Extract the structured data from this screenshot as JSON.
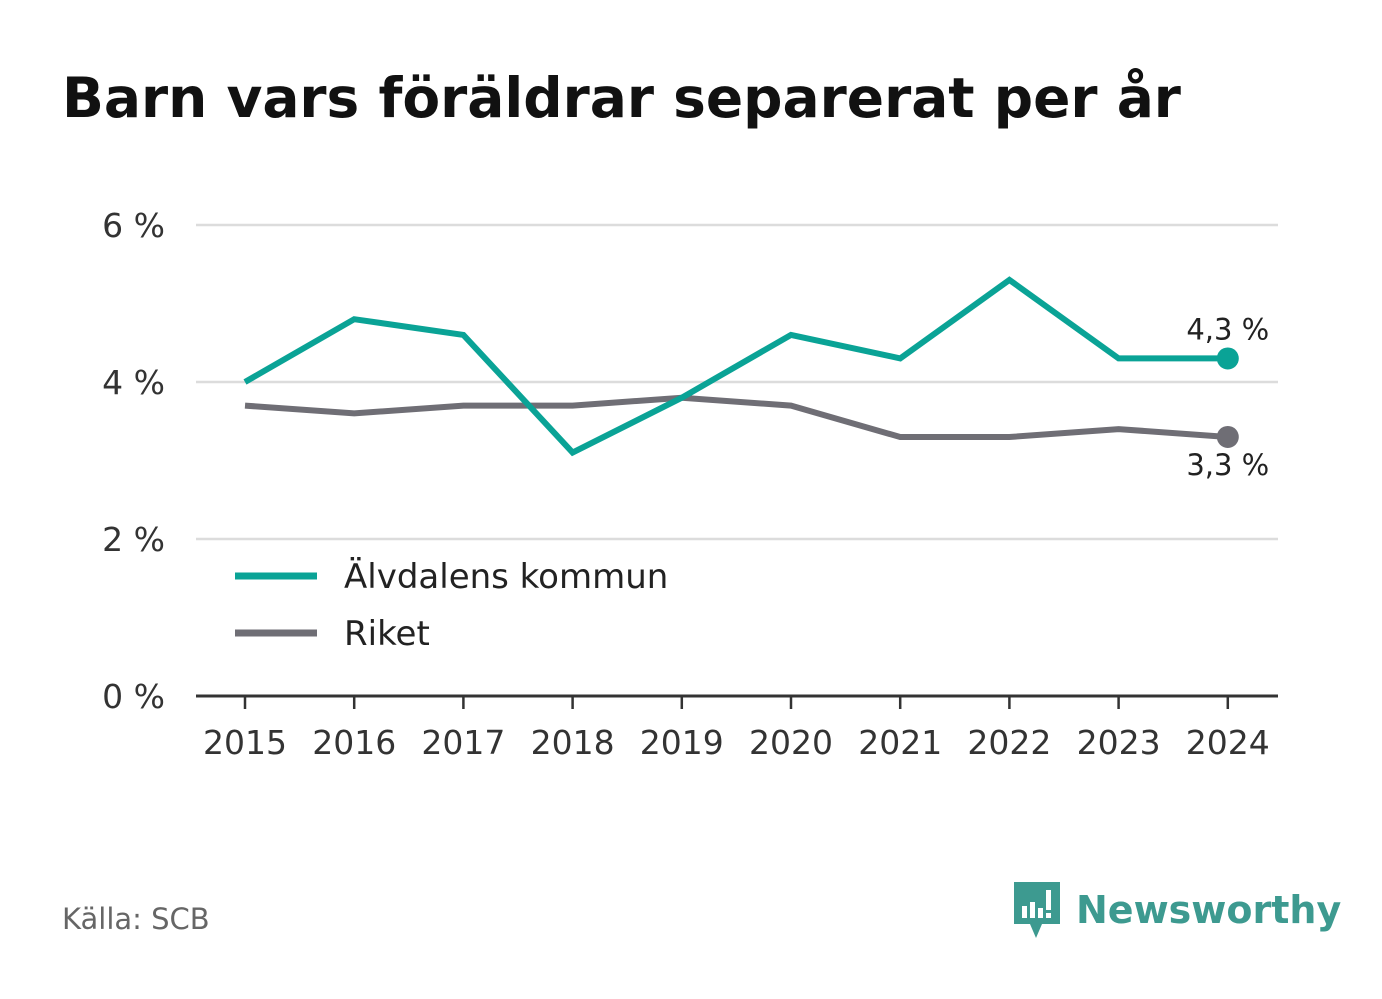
{
  "title": "Barn vars föräldrar separerat per år",
  "source": "Källa: SCB",
  "brand": {
    "name": "Newsworthy",
    "icon": "newsworthy-logo-icon",
    "color": "#3d9a90"
  },
  "chart_data": {
    "type": "line",
    "title": "Barn vars föräldrar separerat per år",
    "x": [
      2015,
      2016,
      2017,
      2018,
      2019,
      2020,
      2021,
      2022,
      2023,
      2024
    ],
    "x_tick_labels": [
      "2015",
      "2016",
      "2017",
      "2018",
      "2019",
      "2020",
      "2021",
      "2022",
      "2023",
      "2024"
    ],
    "ylim": [
      0,
      6
    ],
    "y_ticks": [
      0,
      2,
      4,
      6
    ],
    "y_tick_labels": [
      "0 %",
      "2 %",
      "4 %",
      "6 %"
    ],
    "grid": "horizontal",
    "legend_position": "bottom-left",
    "series": [
      {
        "name": "Älvdalens kommun",
        "color": "#0aa396",
        "values": [
          4.0,
          4.8,
          4.6,
          3.1,
          3.8,
          4.6,
          4.3,
          5.3,
          4.3,
          4.3
        ],
        "end_label": "4,3 %"
      },
      {
        "name": "Riket",
        "color": "#6f6e75",
        "values": [
          3.7,
          3.6,
          3.7,
          3.7,
          3.8,
          3.7,
          3.3,
          3.3,
          3.4,
          3.3
        ],
        "end_label": "3,3 %"
      }
    ]
  }
}
